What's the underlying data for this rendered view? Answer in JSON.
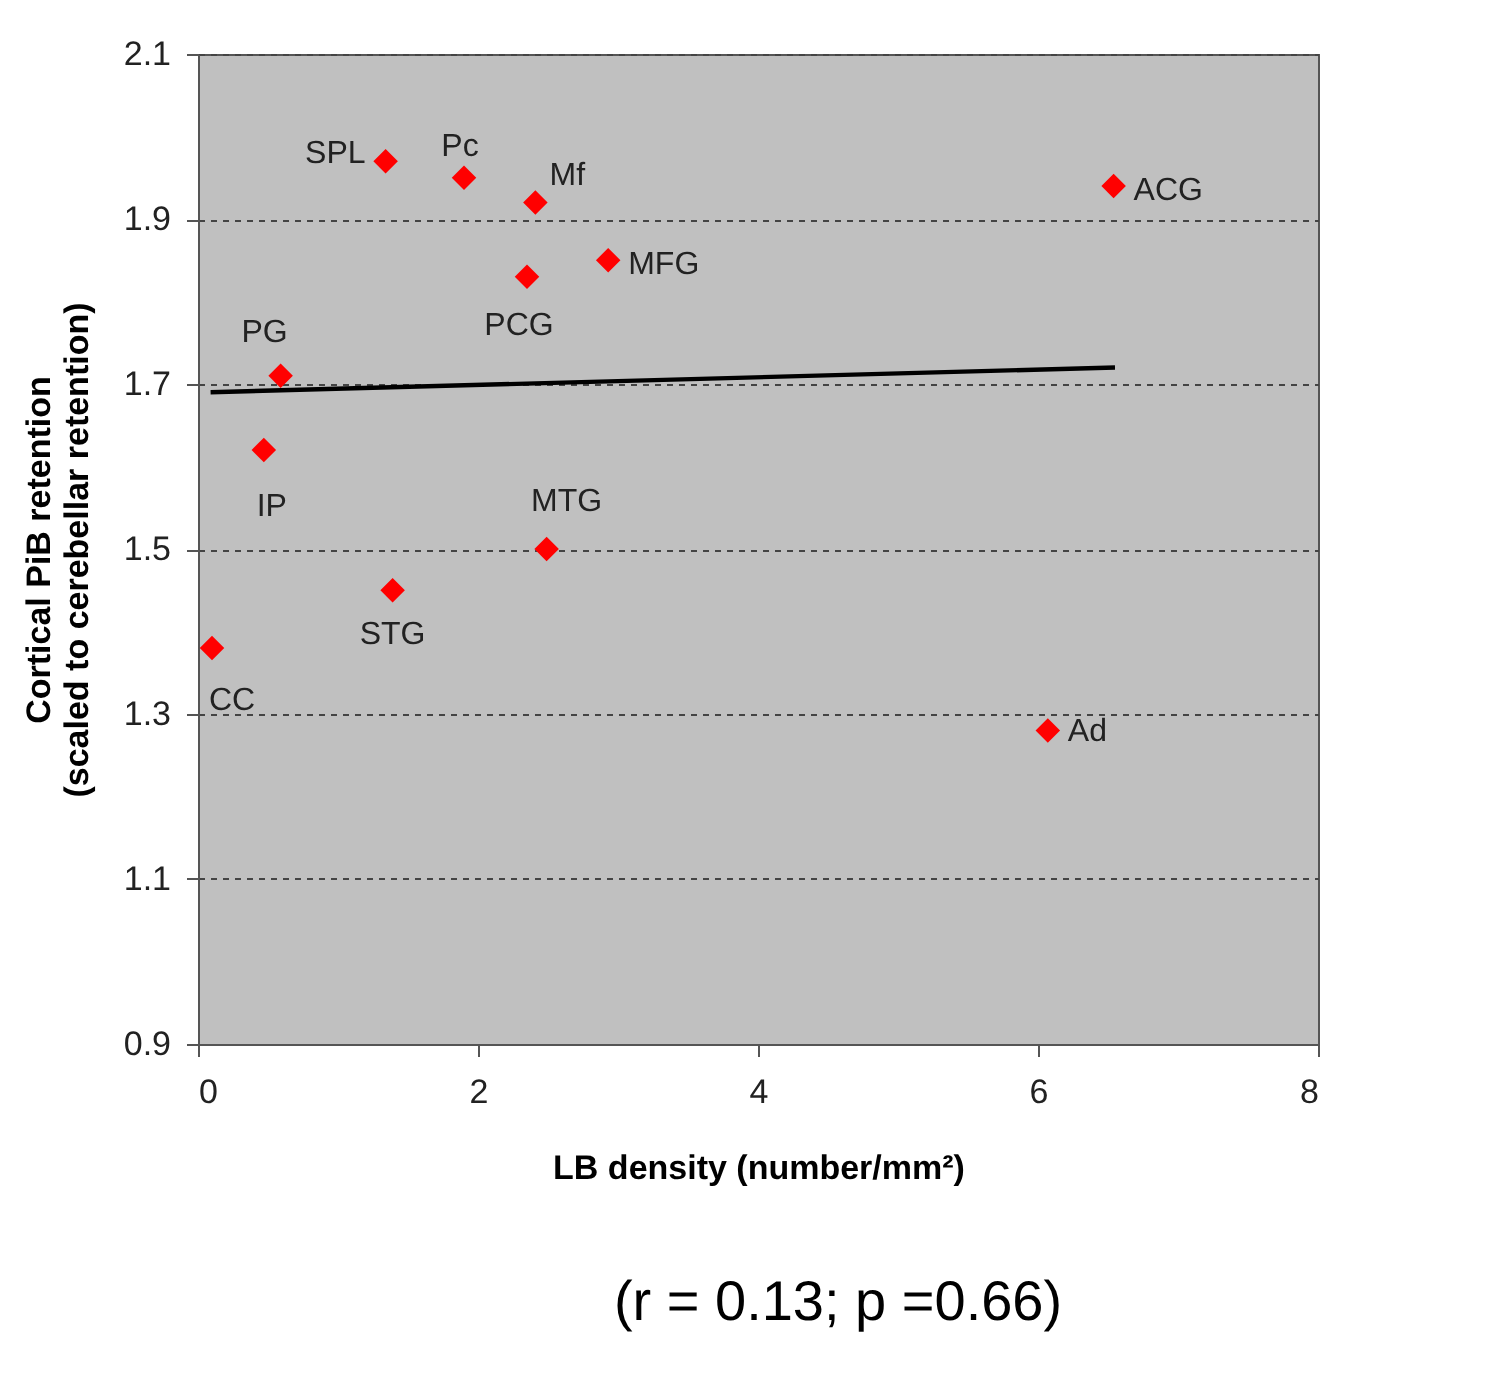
{
  "chart_data": {
    "type": "scatter",
    "xlabel": "LB density (number/mm²)",
    "ylabel": "Cortical PiB retention\n(scaled to cerebellar retention)",
    "xlim": [
      0,
      8
    ],
    "xticks": [
      0,
      2,
      4,
      6,
      8
    ],
    "ylim": [
      0.9,
      2.1
    ],
    "yticks": [
      0.9,
      1.1,
      1.3,
      1.5,
      1.7,
      1.9,
      2.1
    ],
    "grid": "y",
    "marker": "diamond",
    "series": [
      {
        "color": "#ff0000",
        "x": [
          1.34,
          1.9,
          2.41,
          6.54,
          2.93,
          2.35,
          0.59,
          0.47,
          2.49,
          1.39,
          0.1,
          6.07
        ],
        "values": [
          1.97,
          1.95,
          1.92,
          1.94,
          1.85,
          1.83,
          1.71,
          1.62,
          1.5,
          1.45,
          1.38,
          1.28
        ]
      },
      {
        "type": "line",
        "marker": "none",
        "line_style": "solid",
        "color": "#000000",
        "x": [
          0.09,
          6.55
        ],
        "values": [
          1.69,
          1.72
        ]
      }
    ],
    "annotations": [
      {
        "text": "SPL",
        "x": 1.34,
        "y": 1.97
      },
      {
        "text": "Pc",
        "x": 1.9,
        "y": 1.95
      },
      {
        "text": "Mf",
        "x": 2.41,
        "y": 1.92
      },
      {
        "text": "ACG",
        "x": 6.54,
        "y": 1.94
      },
      {
        "text": "MFG",
        "x": 2.93,
        "y": 1.85
      },
      {
        "text": "PCG",
        "x": 2.35,
        "y": 1.83
      },
      {
        "text": "PG",
        "x": 0.59,
        "y": 1.71
      },
      {
        "text": "IP",
        "x": 0.47,
        "y": 1.62
      },
      {
        "text": "MTG",
        "x": 2.49,
        "y": 1.5
      },
      {
        "text": "STG",
        "x": 1.39,
        "y": 1.45
      },
      {
        "text": "CC",
        "x": 0.1,
        "y": 1.38
      },
      {
        "text": "Ad",
        "x": 6.07,
        "y": 1.28
      },
      "(r = 0.13; p =0.66)"
    ]
  }
}
